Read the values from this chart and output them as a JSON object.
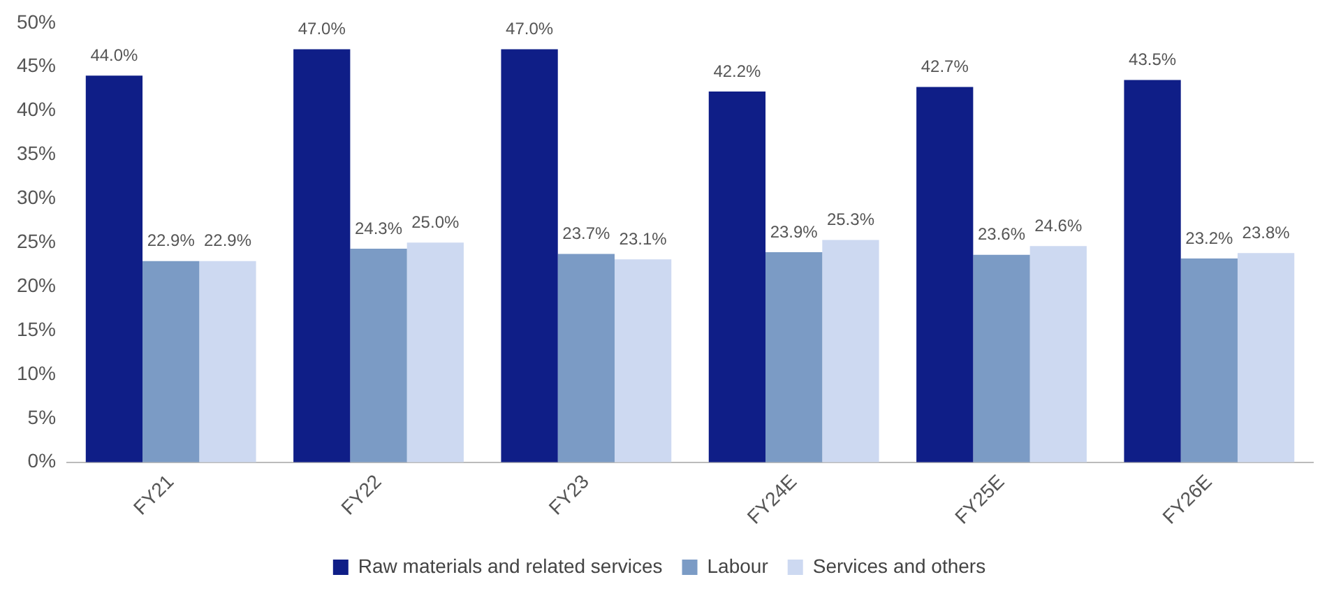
{
  "chart_data": {
    "type": "bar",
    "categories": [
      "FY21",
      "FY22",
      "FY23",
      "FY24E",
      "FY25E",
      "FY26E"
    ],
    "series": [
      {
        "name": "Raw materials and related services",
        "color": "#0f1e87",
        "values": [
          44.0,
          47.0,
          47.0,
          42.2,
          42.7,
          43.5
        ],
        "value_labels": [
          "44.0%",
          "47.0%",
          "47.0%",
          "42.2%",
          "42.7%",
          "43.5%"
        ]
      },
      {
        "name": "Labour",
        "color": "#7b9bc5",
        "values": [
          22.9,
          24.3,
          23.7,
          23.9,
          23.6,
          23.2
        ],
        "value_labels": [
          "22.9%",
          "24.3%",
          "23.7%",
          "23.9%",
          "23.6%",
          "23.2%"
        ]
      },
      {
        "name": "Services and others",
        "color": "#cdd9f1",
        "values": [
          22.9,
          25.0,
          23.1,
          25.3,
          24.6,
          23.8
        ],
        "value_labels": [
          "22.9%",
          "25.0%",
          "23.1%",
          "25.3%",
          "24.6%",
          "23.8%"
        ]
      }
    ],
    "ylim": [
      0,
      50
    ],
    "yticks": [
      {
        "value": 0,
        "label": "0%"
      },
      {
        "value": 5,
        "label": "5%"
      },
      {
        "value": 10,
        "label": "10%"
      },
      {
        "value": 15,
        "label": "15%"
      },
      {
        "value": 20,
        "label": "20%"
      },
      {
        "value": 25,
        "label": "25%"
      },
      {
        "value": 30,
        "label": "30%"
      },
      {
        "value": 35,
        "label": "35%"
      },
      {
        "value": 40,
        "label": "40%"
      },
      {
        "value": 45,
        "label": "45%"
      },
      {
        "value": 50,
        "label": "50%"
      }
    ],
    "grid": false,
    "legend": "bottom"
  }
}
